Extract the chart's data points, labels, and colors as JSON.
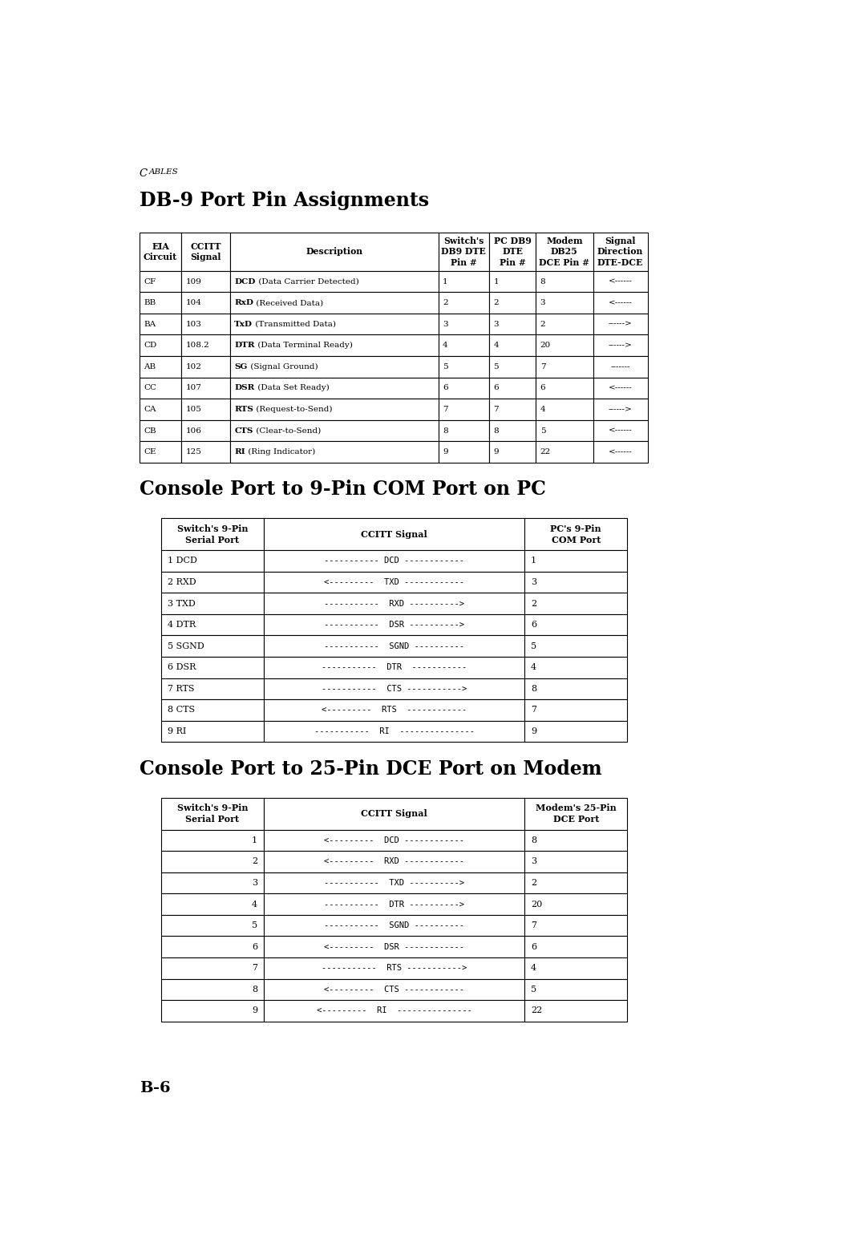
{
  "page_label": "Cables",
  "page_footer": "B-6",
  "title1": "DB-9 Port Pin Assignments",
  "title2": "Console Port to 9-Pin COM Port on PC",
  "title3": "Console Port to 25-Pin DCE Port on Modem",
  "table1_headers": [
    [
      "EIA\nCircuit",
      "CCITT\nSignal",
      "Description",
      "Switch's\nDB9 DTE\nPin #",
      "PC DB9\nDTE\nPin #",
      "Modem\nDB25\nDCE Pin #",
      "Signal\nDirection\nDTE-DCE"
    ]
  ],
  "table1_rows": [
    [
      "CF",
      "109",
      "DCD (Data Carrier Detected)",
      "1",
      "1",
      "8",
      "<------"
    ],
    [
      "BB",
      "104",
      "RxD (Received Data)",
      "2",
      "2",
      "3",
      "<------"
    ],
    [
      "BA",
      "103",
      "TxD (Transmitted Data)",
      "3",
      "3",
      "2",
      "------>"
    ],
    [
      "CD",
      "108.2",
      "DTR (Data Terminal Ready)",
      "4",
      "4",
      "20",
      "------>"
    ],
    [
      "AB",
      "102",
      "SG (Signal Ground)",
      "5",
      "5",
      "7",
      "-------"
    ],
    [
      "CC",
      "107",
      "DSR (Data Set Ready)",
      "6",
      "6",
      "6",
      "<------"
    ],
    [
      "CA",
      "105",
      "RTS (Request-to-Send)",
      "7",
      "7",
      "4",
      "------>"
    ],
    [
      "CB",
      "106",
      "CTS (Clear-to-Send)",
      "8",
      "8",
      "5",
      "<------"
    ],
    [
      "CE",
      "125",
      "RI (Ring Indicator)",
      "9",
      "9",
      "22",
      "<------"
    ]
  ],
  "table1_bold_desc": [
    "DCD",
    "RxD",
    "TxD",
    "DTR",
    "SG",
    "DSR",
    "RTS",
    "CTS",
    "RI"
  ],
  "table1_desc_rest": [
    " (Data Carrier Detected)",
    " (Received Data)",
    " (Transmitted Data)",
    " (Data Terminal Ready)",
    " (Signal Ground)",
    " (Data Set Ready)",
    " (Request-to-Send)",
    " (Clear-to-Send)",
    " (Ring Indicator)"
  ],
  "table2_headers": [
    [
      "Switch's 9-Pin\nSerial Port",
      "CCITT Signal",
      "PC's 9-Pin\nCOM Port"
    ]
  ],
  "table2_rows": [
    [
      "1 DCD",
      "----------- DCD ------------",
      "1"
    ],
    [
      "2 RXD",
      "<---------  TXD ------------",
      "3"
    ],
    [
      "3 TXD",
      "-----------  RXD ---------->",
      "2"
    ],
    [
      "4 DTR",
      "-----------  DSR ---------->",
      "6"
    ],
    [
      "5 SGND",
      "-----------  SGND ----------",
      "5"
    ],
    [
      "6 DSR",
      "-----------  DTR  -----------",
      "4"
    ],
    [
      "7 RTS",
      "-----------  CTS ----------->",
      "8"
    ],
    [
      "8 CTS",
      "<---------  RTS  ------------",
      "7"
    ],
    [
      "9 RI",
      "-----------  RI  ---------------",
      "9"
    ]
  ],
  "table3_headers": [
    [
      "Switch's 9-Pin\nSerial Port",
      "CCITT Signal",
      "Modem's 25-Pin\nDCE Port"
    ]
  ],
  "table3_rows": [
    [
      "1",
      "<---------  DCD ------------",
      "8"
    ],
    [
      "2",
      "<---------  RXD ------------",
      "3"
    ],
    [
      "3",
      "-----------  TXD ---------->",
      "2"
    ],
    [
      "4",
      "-----------  DTR ---------->",
      "20"
    ],
    [
      "5",
      "-----------  SGND ----------",
      "7"
    ],
    [
      "6",
      "<---------  DSR ------------",
      "6"
    ],
    [
      "7",
      "-----------  RTS ----------->",
      "4"
    ],
    [
      "8",
      "<---------  CTS ------------",
      "5"
    ],
    [
      "9",
      "<---------  RI  ---------------",
      "22"
    ]
  ],
  "bg_color": "#ffffff",
  "text_color": "#000000"
}
